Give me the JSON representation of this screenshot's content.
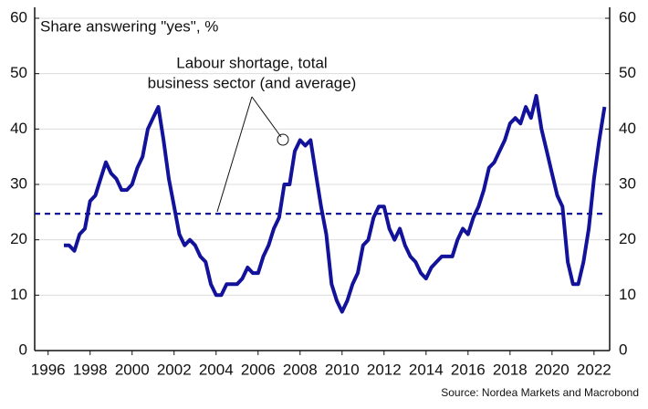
{
  "chart_data": {
    "type": "line",
    "subtitle": "Share answering \"yes\", %",
    "annotation": [
      "Labour shortage, total",
      "business sector (and average)"
    ],
    "source": "Source: Nordea Markets and Macrobond",
    "x": [
      1996.75,
      1997,
      1997.25,
      1997.5,
      1997.75,
      1998,
      1998.25,
      1998.5,
      1998.75,
      1999,
      1999.25,
      1999.5,
      1999.75,
      2000,
      2000.25,
      2000.5,
      2000.75,
      2001,
      2001.25,
      2001.5,
      2001.75,
      2002,
      2002.25,
      2002.5,
      2002.75,
      2003,
      2003.25,
      2003.5,
      2003.75,
      2004,
      2004.25,
      2004.5,
      2004.75,
      2005,
      2005.25,
      2005.5,
      2005.75,
      2006,
      2006.25,
      2006.5,
      2006.75,
      2007,
      2007.25,
      2007.5,
      2007.75,
      2008,
      2008.25,
      2008.5,
      2008.75,
      2009,
      2009.25,
      2009.5,
      2009.75,
      2010,
      2010.25,
      2010.5,
      2010.75,
      2011,
      2011.25,
      2011.5,
      2011.75,
      2012,
      2012.25,
      2012.5,
      2012.75,
      2013,
      2013.25,
      2013.5,
      2013.75,
      2014,
      2014.25,
      2014.5,
      2014.75,
      2015,
      2015.25,
      2015.5,
      2015.75,
      2016,
      2016.25,
      2016.5,
      2016.75,
      2017,
      2017.25,
      2017.5,
      2017.75,
      2018,
      2018.25,
      2018.5,
      2018.75,
      2019,
      2019.25,
      2019.5,
      2019.75,
      2020,
      2020.25,
      2020.5,
      2020.75,
      2021,
      2021.25,
      2021.5,
      2021.75,
      2022,
      2022.25,
      2022.5
    ],
    "series": [
      {
        "name": "Labour shortage, total business sector",
        "color": "#12129a",
        "values": [
          19,
          19,
          18,
          21,
          22,
          27,
          28,
          31,
          34,
          32,
          31,
          29,
          29,
          30,
          33,
          35,
          40,
          42,
          44,
          38,
          31,
          26,
          21,
          19,
          20,
          19,
          17,
          16,
          12,
          10,
          10,
          12,
          12,
          12,
          13,
          15,
          14,
          14,
          17,
          19,
          22,
          24,
          30,
          30,
          36,
          38,
          37,
          38,
          32,
          26,
          21,
          12,
          9,
          7,
          9,
          12,
          14,
          19,
          20,
          24,
          26,
          26,
          22,
          20,
          22,
          19,
          17,
          16,
          14,
          13,
          15,
          16,
          17,
          17,
          17,
          20,
          22,
          21,
          24,
          26,
          29,
          33,
          34,
          36,
          38,
          41,
          42,
          41,
          44,
          42,
          46,
          40,
          36,
          32,
          28,
          26,
          16,
          12,
          12,
          16,
          22,
          31,
          38,
          44
        ]
      }
    ],
    "average": 24.7,
    "xlim": [
      1995.36,
      2022.05
    ],
    "xticks": [
      1996,
      1998,
      2000,
      2002,
      2004,
      2006,
      2008,
      2010,
      2012,
      2014,
      2016,
      2018,
      2020,
      2022
    ],
    "ylim": [
      0,
      60
    ],
    "yticks": [
      0,
      10,
      20,
      30,
      40,
      50,
      60
    ],
    "y2lim": [
      0,
      60
    ],
    "y2ticks": [
      0,
      10,
      20,
      30,
      40,
      50,
      60
    ],
    "grid": true
  }
}
